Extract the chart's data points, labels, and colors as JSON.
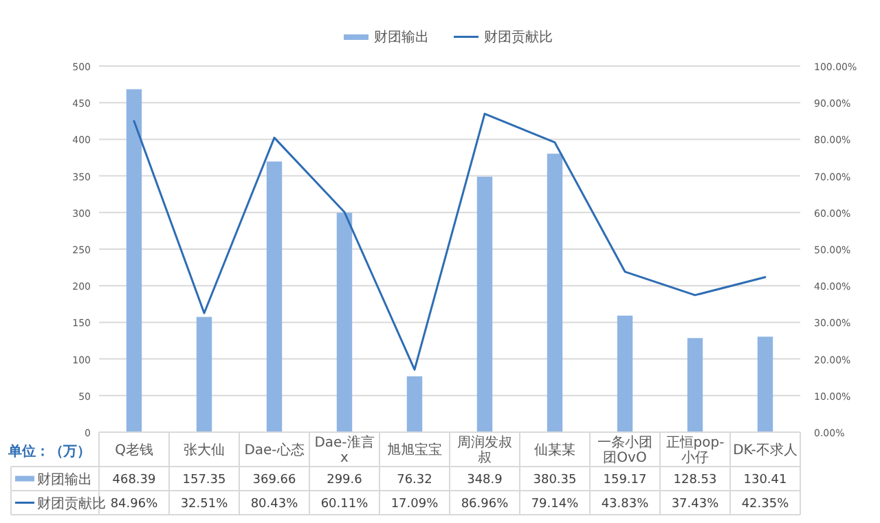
{
  "chart_data": {
    "type": "bar",
    "categories": [
      "Q老钱",
      "张大仙",
      "Dae-心态",
      "Dae-淮言x",
      "旭旭宝宝",
      "周润发叔叔",
      "仙某某",
      "一条小团团OvO",
      "正恒pop-小仔",
      "DK-不求人"
    ],
    "series": [
      {
        "name": "财团输出",
        "color": "#8eb4e3",
        "values": [
          468.39,
          157.35,
          369.66,
          299.6,
          76.32,
          348.9,
          380.35,
          159.17,
          128.53,
          130.41
        ],
        "value_labels": [
          "468.39",
          "157.35",
          "369.66",
          "299.6",
          "76.32",
          "348.9",
          "380.35",
          "159.17",
          "128.53",
          "130.41"
        ]
      },
      {
        "name": "财团贡献比",
        "type": "line",
        "axis": "y2",
        "color": "#2e6db4",
        "values": [
          84.96,
          32.51,
          80.43,
          60.11,
          17.09,
          86.96,
          79.14,
          43.83,
          37.43,
          42.35
        ],
        "value_labels": [
          "84.96%",
          "32.51%",
          "80.43%",
          "60.11%",
          "17.09%",
          "86.96%",
          "79.14%",
          "43.83%",
          "37.43%",
          "42.35%"
        ]
      }
    ],
    "ylim": [
      0,
      500
    ],
    "yticks": [
      0,
      50,
      100,
      150,
      200,
      250,
      300,
      350,
      400,
      450,
      500
    ],
    "y2lim": [
      0,
      100
    ],
    "y2ticks": [
      {
        "value": 0,
        "label": "0.00%"
      },
      {
        "value": 10,
        "label": "10.00%"
      },
      {
        "value": 20,
        "label": "20.00%"
      },
      {
        "value": 30,
        "label": "30.00%"
      },
      {
        "value": 40,
        "label": "40.00%"
      },
      {
        "value": 50,
        "label": "50.00%"
      },
      {
        "value": 60,
        "label": "60.00%"
      },
      {
        "value": 70,
        "label": "70.00%"
      },
      {
        "value": 80,
        "label": "80.00%"
      },
      {
        "value": 90,
        "label": "90.00%"
      },
      {
        "value": 100,
        "label": "100.00%"
      }
    ],
    "grid": "y",
    "legend": "top",
    "annotations": [
      "单位：（万）"
    ]
  }
}
